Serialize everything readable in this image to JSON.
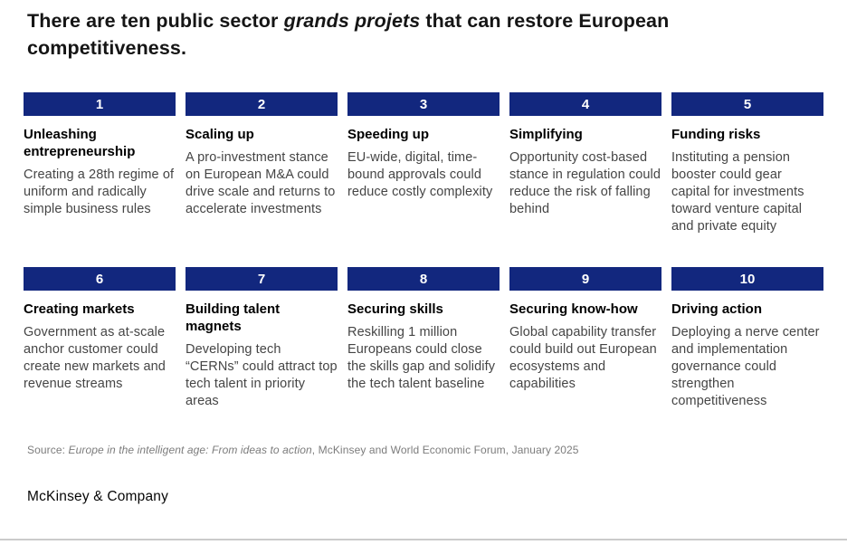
{
  "colors": {
    "bar_blue": "#12277E",
    "bar_number": "#FFFFFF",
    "rule_gray": "#CBCBCB"
  },
  "title": {
    "prefix": "There are ten public sector ",
    "italic": "grands projets",
    "suffix": " that can restore European competitiveness."
  },
  "cards": [
    {
      "number": "1",
      "heading": "Unleashing entrepreneurship",
      "body": "Creating a 28th regime of uniform and radically simple business rules"
    },
    {
      "number": "2",
      "heading": "Scaling up",
      "body": "A pro-investment stance on European M&A could drive scale and returns to accelerate investments"
    },
    {
      "number": "3",
      "heading": "Speeding up",
      "body": "EU-wide, digital, time-bound approvals could reduce costly complexity"
    },
    {
      "number": "4",
      "heading": "Simplifying",
      "body": "Opportunity cost-based stance in regulation could reduce the risk of falling behind"
    },
    {
      "number": "5",
      "heading": "Funding risks",
      "body": "Instituting a pension booster could gear capital for investments toward venture capital and private equity"
    },
    {
      "number": "6",
      "heading": "Creating markets",
      "body": "Government as at-scale anchor customer could create new markets and revenue streams"
    },
    {
      "number": "7",
      "heading": "Building talent magnets",
      "body": "Developing tech “CERNs” could attract top tech talent in priority areas"
    },
    {
      "number": "8",
      "heading": "Securing skills",
      "body": "Reskilling 1 million Europeans could close the skills gap and solidify the tech talent baseline"
    },
    {
      "number": "9",
      "heading": "Securing know-how",
      "body": "Global capability transfer could build out European ecosystems and capabilities"
    },
    {
      "number": "10",
      "heading": "Driving action",
      "body": "Deploying a nerve center and implementation governance could strengthen competitiveness"
    }
  ],
  "source": {
    "prefix": "Source: ",
    "italic": "Europe in the intelligent age: From ideas to action",
    "suffix": ", McKinsey and World Economic Forum, January 2025"
  },
  "footer": {
    "logo_text": "McKinsey & Company"
  }
}
